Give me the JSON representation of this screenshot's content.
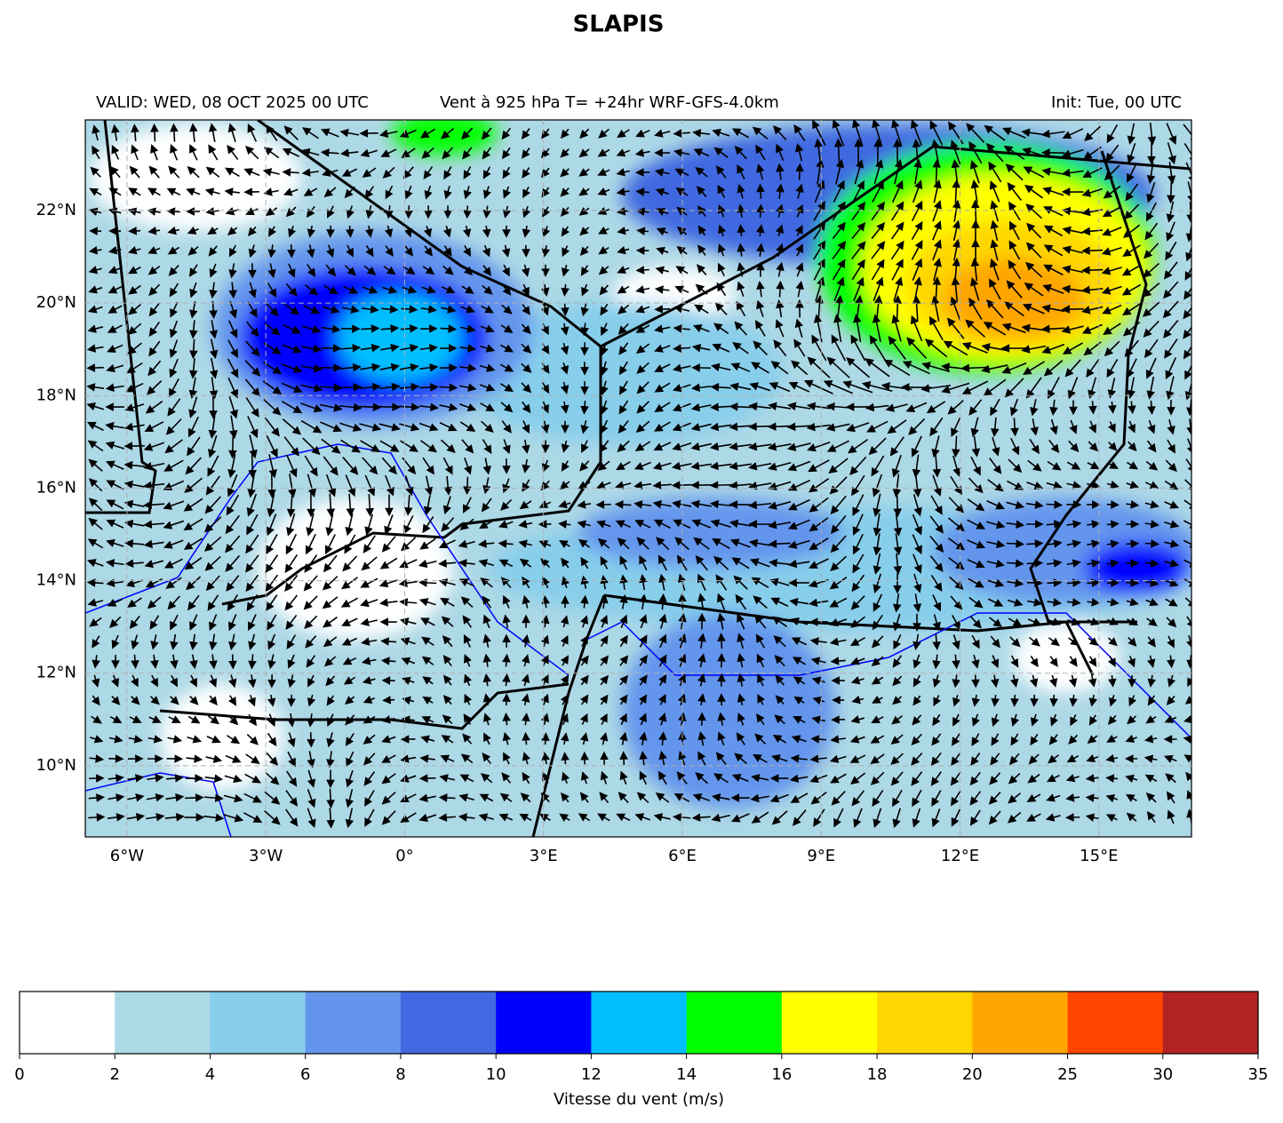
{
  "title": "SLAPIS",
  "header": {
    "left": "VALID: WED, 08 OCT 2025 00 UTC",
    "center": "Vent à 925 hPa T= +24hr  WRF-GFS-4.0km",
    "right": "Init: Tue, 00 UTC"
  },
  "map": {
    "lonlim": [
      -6.9,
      17
    ],
    "latlim": [
      8.46,
      23.96
    ],
    "lonticks": [
      {
        "value": -6,
        "label": "6°W"
      },
      {
        "value": -3,
        "label": "3°W"
      },
      {
        "value": 0,
        "label": "0°"
      },
      {
        "value": 3,
        "label": "3°E"
      },
      {
        "value": 6,
        "label": "6°E"
      },
      {
        "value": 9,
        "label": "9°E"
      },
      {
        "value": 12,
        "label": "12°E"
      },
      {
        "value": 15,
        "label": "15°E"
      }
    ],
    "latticks": [
      {
        "value": 10,
        "label": "10°N"
      },
      {
        "value": 12,
        "label": "12°N"
      },
      {
        "value": 14,
        "label": "14°N"
      },
      {
        "value": 16,
        "label": "16°N"
      },
      {
        "value": 18,
        "label": "18°N"
      },
      {
        "value": 20,
        "label": "20°N"
      },
      {
        "value": 22,
        "label": "22°N"
      }
    ],
    "grid": true
  },
  "colorbar": {
    "label": "Vitesse du vent (m/s)",
    "bounds": [
      0,
      2,
      4,
      6,
      8,
      10,
      12,
      14,
      16,
      18,
      20,
      25,
      30,
      35
    ],
    "colors": [
      "#ffffff",
      "#add8e6",
      "#87ceeb",
      "#6495ed",
      "#4169e1",
      "#0000ff",
      "#00bfff",
      "#00ff00",
      "#ffff00",
      "#ffd700",
      "#ffa500",
      "#ff4500",
      "#b22222"
    ]
  }
}
